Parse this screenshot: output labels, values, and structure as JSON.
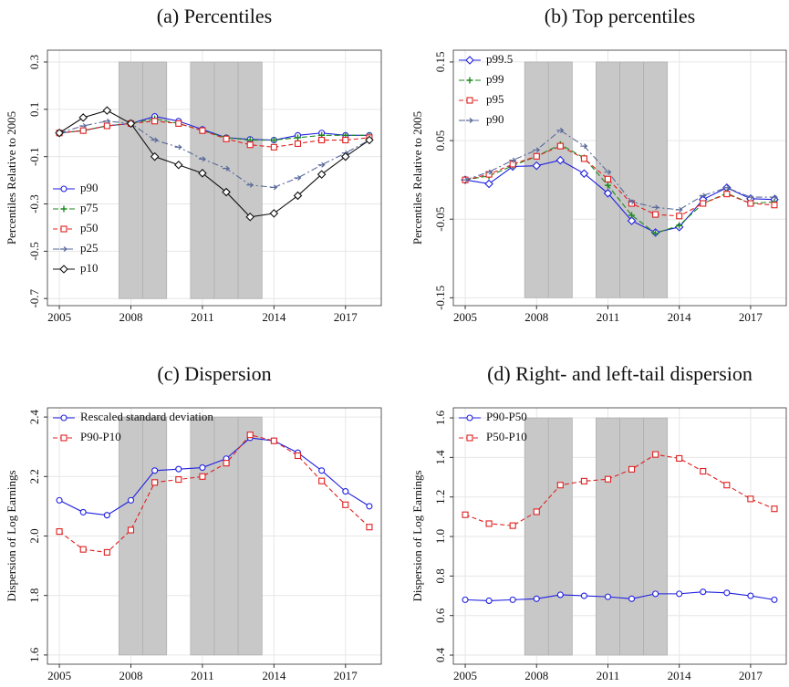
{
  "chart_data": [
    {
      "type": "line",
      "title": "(a) Percentiles",
      "ylabel": "Percentiles Relative to 2005",
      "x": [
        2005,
        2006,
        2007,
        2008,
        2009,
        2010,
        2011,
        2012,
        2013,
        2014,
        2015,
        2016,
        2017,
        2018
      ],
      "xlim": [
        2004.5,
        2018.5
      ],
      "xticks": [
        2005,
        2008,
        2011,
        2014,
        2017
      ],
      "ylim": [
        -0.73,
        0.35
      ],
      "yticks": [
        0.3,
        0.1,
        -0.1,
        -0.3,
        -0.5,
        -0.7
      ],
      "grid": true,
      "legend": "lower left",
      "shaded": [
        [
          2007.5,
          2008.5
        ],
        [
          2008.5,
          2009.5
        ],
        [
          2010.5,
          2011.5
        ],
        [
          2011.5,
          2012.5
        ],
        [
          2012.5,
          2013.5
        ]
      ],
      "series": [
        {
          "name": "p90",
          "color": "#1f1fe0",
          "marker": "circle",
          "dash": "none",
          "values": [
            0,
            0.01,
            0.03,
            0.04,
            0.07,
            0.05,
            0.015,
            -0.02,
            -0.027,
            -0.03,
            -0.01,
            0,
            -0.01,
            -0.01
          ]
        },
        {
          "name": "p75",
          "color": "#1a8a1a",
          "marker": "plus",
          "dash": "6 3",
          "values": [
            0,
            0.01,
            0.03,
            0.04,
            0.06,
            0.04,
            0.01,
            -0.02,
            -0.03,
            -0.03,
            -0.02,
            -0.01,
            -0.01,
            -0.01
          ]
        },
        {
          "name": "p50",
          "color": "#e02020",
          "marker": "square",
          "dash": "5 3",
          "values": [
            0,
            0.01,
            0.03,
            0.04,
            0.05,
            0.04,
            0.01,
            -0.025,
            -0.05,
            -0.06,
            -0.045,
            -0.03,
            -0.03,
            -0.02
          ]
        },
        {
          "name": "p25",
          "color": "#5a6a9a",
          "marker": "arrow",
          "dash": "7 3 2 3",
          "values": [
            0,
            0.03,
            0.05,
            0.04,
            -0.03,
            -0.06,
            -0.11,
            -0.15,
            -0.22,
            -0.23,
            -0.19,
            -0.135,
            -0.085,
            -0.03
          ]
        },
        {
          "name": "p10",
          "color": "#111111",
          "marker": "diamond",
          "dash": "none",
          "values": [
            0,
            0.065,
            0.095,
            0.04,
            -0.1,
            -0.135,
            -0.17,
            -0.25,
            -0.355,
            -0.34,
            -0.265,
            -0.175,
            -0.1,
            -0.03
          ]
        }
      ]
    },
    {
      "type": "line",
      "title": "(b) Top percentiles",
      "ylabel": "Percentiles Relative to 2005",
      "x": [
        2005,
        2006,
        2007,
        2008,
        2009,
        2010,
        2011,
        2012,
        2013,
        2014,
        2015,
        2016,
        2017,
        2018
      ],
      "xlim": [
        2004.5,
        2018.5
      ],
      "xticks": [
        2005,
        2008,
        2011,
        2014,
        2017
      ],
      "ylim": [
        -0.16,
        0.165
      ],
      "yticks": [
        0.15,
        0.05,
        -0.05,
        -0.15
      ],
      "grid": true,
      "legend": "upper left",
      "shaded": [
        [
          2007.5,
          2008.5
        ],
        [
          2008.5,
          2009.5
        ],
        [
          2010.5,
          2011.5
        ],
        [
          2011.5,
          2012.5
        ],
        [
          2012.5,
          2013.5
        ]
      ],
      "series": [
        {
          "name": "p99.5",
          "color": "#1f1fe0",
          "marker": "diamond",
          "dash": "none",
          "values": [
            0,
            -0.005,
            0.017,
            0.018,
            0.025,
            0.008,
            -0.017,
            -0.052,
            -0.067,
            -0.06,
            -0.025,
            -0.01,
            -0.024,
            -0.025
          ]
        },
        {
          "name": "p99",
          "color": "#1a8a1a",
          "marker": "plus",
          "dash": "6 3",
          "values": [
            0,
            0.005,
            0.018,
            0.03,
            0.045,
            0.028,
            -0.007,
            -0.045,
            -0.068,
            -0.058,
            -0.03,
            -0.017,
            -0.03,
            -0.028
          ]
        },
        {
          "name": "p95",
          "color": "#e02020",
          "marker": "square",
          "dash": "5 3",
          "values": [
            0,
            0.007,
            0.02,
            0.03,
            0.043,
            0.027,
            0.001,
            -0.03,
            -0.044,
            -0.046,
            -0.03,
            -0.018,
            -0.03,
            -0.032
          ]
        },
        {
          "name": "p90",
          "color": "#5a6a9a",
          "marker": "arrow",
          "dash": "7 3 2 3",
          "values": [
            0,
            0.01,
            0.025,
            0.038,
            0.063,
            0.043,
            0.01,
            -0.028,
            -0.035,
            -0.038,
            -0.02,
            -0.01,
            -0.022,
            -0.022
          ]
        }
      ]
    },
    {
      "type": "line",
      "title": "(c) Dispersion",
      "ylabel": "Dispersion of Log Earnings",
      "x": [
        2005,
        2006,
        2007,
        2008,
        2009,
        2010,
        2011,
        2012,
        2013,
        2014,
        2015,
        2016,
        2017,
        2018
      ],
      "xlim": [
        2004.5,
        2018.5
      ],
      "xticks": [
        2005,
        2008,
        2011,
        2014,
        2017
      ],
      "ylim": [
        1.569,
        2.431
      ],
      "yticks": [
        2.4,
        2.2,
        {
          "value": 2,
          "label": "2.0"
        },
        1.8,
        1.6
      ],
      "grid": true,
      "legend": "upper left",
      "shaded": [
        [
          2007.5,
          2008.5
        ],
        [
          2008.5,
          2009.5
        ],
        [
          2010.5,
          2011.5
        ],
        [
          2011.5,
          2012.5
        ],
        [
          2012.5,
          2013.5
        ]
      ],
      "series": [
        {
          "name": "Rescaled standard deviation",
          "color": "#1f1fe0",
          "marker": "circle",
          "dash": "none",
          "values": [
            2.12,
            2.08,
            2.07,
            2.12,
            2.22,
            2.225,
            2.23,
            2.26,
            2.33,
            2.32,
            2.28,
            2.22,
            2.15,
            2.1
          ]
        },
        {
          "name": "P90-P10",
          "color": "#e02020",
          "marker": "square",
          "dash": "5 3",
          "values": [
            2.015,
            1.955,
            1.945,
            2.02,
            2.18,
            2.19,
            2.2,
            2.245,
            2.34,
            2.32,
            2.27,
            2.185,
            2.105,
            2.03
          ]
        }
      ]
    },
    {
      "type": "line",
      "title": "(d) Right- and left-tail dispersion",
      "ylabel": "Dispersion of Log Earnings",
      "x": [
        2005,
        2006,
        2007,
        2008,
        2009,
        2010,
        2011,
        2012,
        2013,
        2014,
        2015,
        2016,
        2017,
        2018
      ],
      "xlim": [
        2004.5,
        2018.5
      ],
      "xticks": [
        2005,
        2008,
        2011,
        2014,
        2017
      ],
      "ylim": [
        0.354,
        1.651
      ],
      "yticks": [
        1.6,
        1.4,
        1.2,
        {
          "value": 1,
          "label": "1.0"
        },
        0.8,
        0.6,
        0.4
      ],
      "grid": true,
      "legend": "upper left",
      "shaded": [
        [
          2007.5,
          2008.5
        ],
        [
          2008.5,
          2009.5
        ],
        [
          2010.5,
          2011.5
        ],
        [
          2011.5,
          2012.5
        ],
        [
          2012.5,
          2013.5
        ]
      ],
      "series": [
        {
          "name": "P90-P50",
          "color": "#1f1fe0",
          "marker": "circle",
          "dash": "none",
          "values": [
            0.68,
            0.675,
            0.68,
            0.685,
            0.705,
            0.7,
            0.695,
            0.685,
            0.71,
            0.71,
            0.72,
            0.715,
            0.7,
            0.68
          ]
        },
        {
          "name": "P50-P10",
          "color": "#e02020",
          "marker": "square",
          "dash": "5 3",
          "values": [
            1.11,
            1.065,
            1.055,
            1.125,
            1.26,
            1.28,
            1.29,
            1.34,
            1.415,
            1.395,
            1.33,
            1.26,
            1.19,
            1.14
          ]
        }
      ]
    }
  ]
}
